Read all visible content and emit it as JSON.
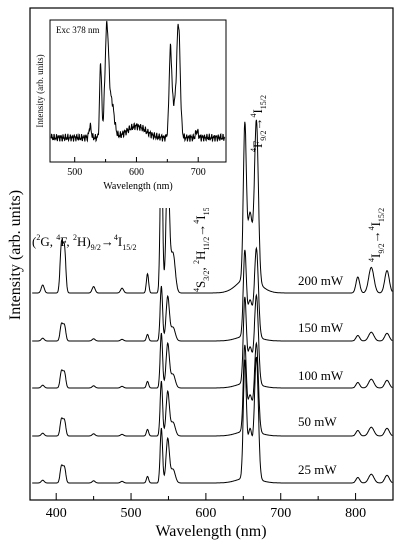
{
  "chart_data": [
    {
      "type": "line",
      "xlabel": "Wavelength (nm)",
      "ylabel": "Intensity (arb. units)",
      "xlim": [
        365,
        850
      ],
      "xticks": [
        400,
        500,
        600,
        700,
        800
      ],
      "xtick_labels": [
        "400",
        "500",
        "600",
        "700",
        "800"
      ],
      "y_ticks_labeled": false,
      "series": [
        {
          "name": "200 mW"
        },
        {
          "name": "150 mW"
        },
        {
          "name": "100 mW"
        },
        {
          "name": "50 mW"
        },
        {
          "name": "25 mW"
        }
      ],
      "peaks_nm": [
        408,
        522,
        541,
        550,
        652,
        668,
        805,
        822,
        842
      ],
      "annotations": [
        {
          "text_parts": [
            "(",
            "2",
            "G, ",
            "4",
            "F, ",
            "2",
            "H)",
            "9/2",
            "→",
            "4",
            "I",
            "15/2"
          ],
          "near_nm": 408
        },
        {
          "text_parts": [
            "4",
            "S",
            "3/2",
            ", ",
            "2",
            "H",
            "11/2",
            "→",
            "4",
            "I",
            "15/2"
          ],
          "near_nm": 545
        },
        {
          "text_parts": [
            "4",
            "F",
            "9/2",
            "→",
            "4",
            "I",
            "15/2"
          ],
          "near_nm": 660
        },
        {
          "text_parts": [
            "4",
            "I",
            "9/2",
            "→",
            "4",
            "I",
            "15/2"
          ],
          "near_nm": 820
        }
      ]
    },
    {
      "type": "line",
      "title": "Exc 378 nm",
      "xlabel": "Wavelength (nm)",
      "ylabel": "Intensity (arb. units)",
      "xlim": [
        460,
        745
      ],
      "xticks": [
        500,
        600,
        700
      ],
      "xtick_labels": [
        "500",
        "600",
        "700"
      ],
      "peaks_nm": [
        525,
        542,
        552,
        655,
        668
      ]
    }
  ]
}
